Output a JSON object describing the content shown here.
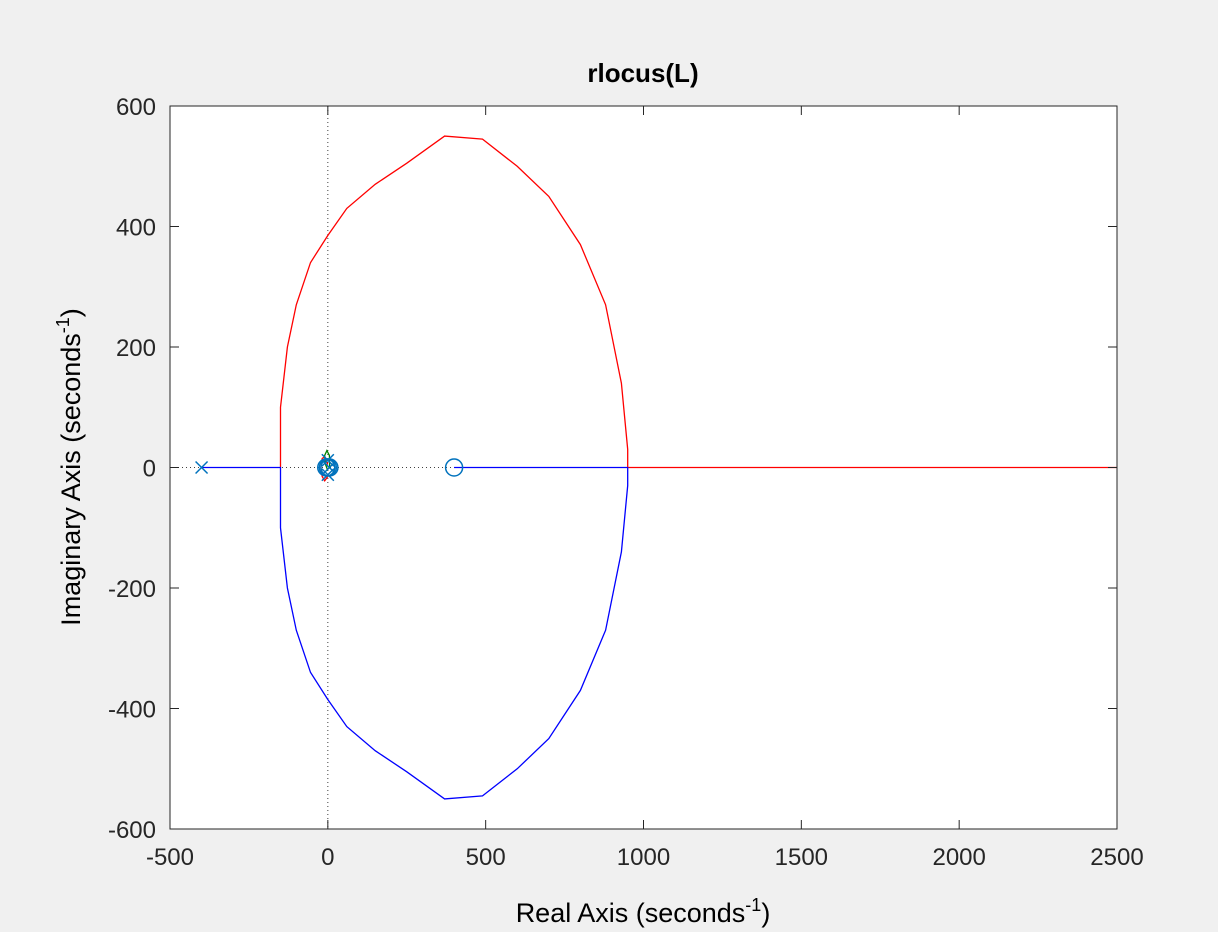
{
  "chart_data": {
    "type": "root-locus",
    "title": "rlocus(L)",
    "xlabel": {
      "text": "Real Axis (seconds",
      "sup": "-1",
      "close": ")"
    },
    "ylabel": {
      "text": "Imaginary Axis (seconds",
      "sup": "-1",
      "close": ")"
    },
    "xlim": [
      -500,
      2500
    ],
    "ylim": [
      -600,
      600
    ],
    "xticks": [
      -500,
      0,
      500,
      1000,
      1500,
      2000,
      2500
    ],
    "yticks": [
      -600,
      -400,
      -200,
      0,
      200,
      400,
      600
    ],
    "xtick_labels": [
      "-500",
      "0",
      "500",
      "1000",
      "1500",
      "2000",
      "2500"
    ],
    "ytick_labels": [
      "-600",
      "-400",
      "-200",
      "0",
      "200",
      "400",
      "600"
    ],
    "grid": false,
    "colors": {
      "red_branch": "#ff0000",
      "blue_branch": "#0000ff",
      "green_branch": "#008000",
      "marker": "#0072bd",
      "axes_bg": "#ffffff",
      "figure_bg": "#f0f0f0",
      "frame": "#262626",
      "zero_lines": "#404040"
    },
    "series": [
      {
        "color": "red",
        "points": [
          [
            -150,
            0
          ],
          [
            -150,
            100
          ],
          [
            -128,
            200
          ],
          [
            -100,
            270
          ],
          [
            -55,
            340
          ],
          [
            0,
            385
          ],
          [
            60,
            430
          ],
          [
            150,
            470
          ],
          [
            250,
            505
          ],
          [
            370,
            550
          ],
          [
            490,
            545
          ],
          [
            600,
            500
          ],
          [
            700,
            450
          ],
          [
            800,
            370
          ],
          [
            880,
            270
          ],
          [
            930,
            140
          ],
          [
            950,
            30
          ],
          [
            950,
            0
          ],
          [
            2500,
            0
          ]
        ]
      },
      {
        "color": "blue",
        "points": [
          [
            -400,
            0
          ],
          [
            -150,
            0
          ],
          [
            -150,
            -100
          ],
          [
            -128,
            -200
          ],
          [
            -100,
            -270
          ],
          [
            -55,
            -340
          ],
          [
            0,
            -385
          ],
          [
            60,
            -430
          ],
          [
            150,
            -470
          ],
          [
            250,
            -505
          ],
          [
            370,
            -550
          ],
          [
            490,
            -545
          ],
          [
            600,
            -500
          ],
          [
            700,
            -450
          ],
          [
            800,
            -370
          ],
          [
            880,
            -270
          ],
          [
            930,
            -140
          ],
          [
            950,
            -30
          ],
          [
            950,
            0
          ],
          [
            400,
            0
          ]
        ]
      },
      {
        "color": "red",
        "points": [
          [
            0,
            5
          ],
          [
            -10,
            18
          ],
          [
            -18,
            15
          ],
          [
            -22,
            0
          ],
          [
            -18,
            -15
          ],
          [
            -10,
            -22
          ],
          [
            0,
            -15
          ]
        ]
      },
      {
        "color": "green",
        "points": [
          [
            0,
            -5
          ],
          [
            -8,
            6
          ],
          [
            -10,
            20
          ],
          [
            -3,
            28
          ],
          [
            5,
            20
          ],
          [
            6,
            0
          ]
        ]
      }
    ],
    "poles": [
      [
        -400,
        0
      ],
      [
        0,
        12
      ],
      [
        0,
        -12
      ],
      [
        5,
        0
      ]
    ],
    "zeros": [
      [
        400,
        0
      ],
      [
        -5,
        0
      ],
      [
        0,
        0
      ],
      [
        5,
        0
      ]
    ]
  }
}
